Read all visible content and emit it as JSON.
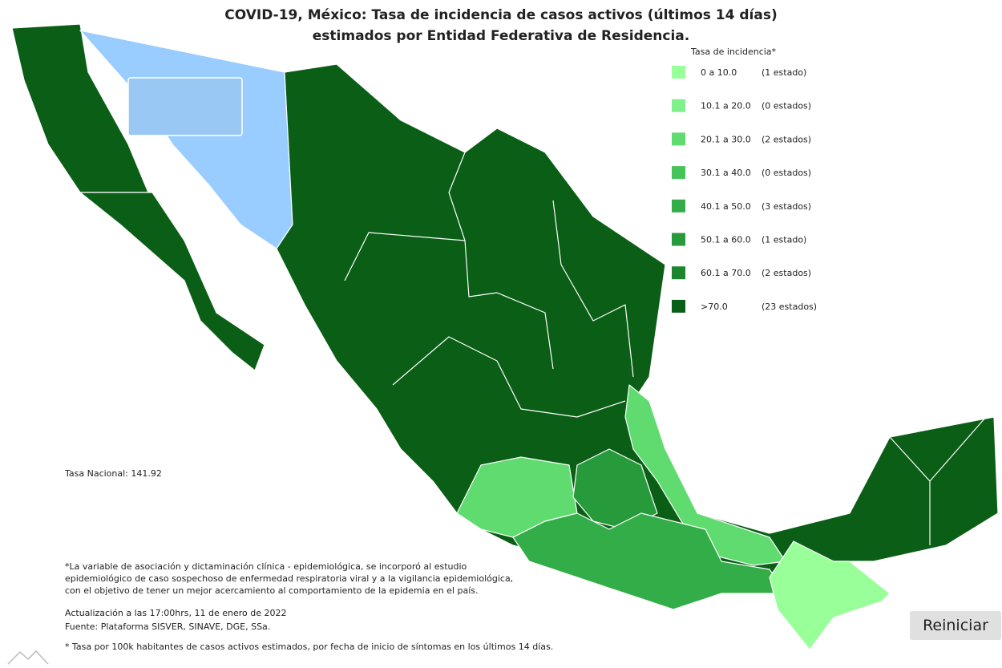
{
  "header": {
    "title_line1": "COVID-19, México: Tasa de incidencia de casos activos (últimos 14 días)",
    "title_line2": "estimados por Entidad Federativa de Residencia."
  },
  "legend": {
    "title": "Tasa de incidencia*",
    "items": [
      {
        "range": "0 a 10.0",
        "count": "(1 estado)",
        "color": "#99ff99"
      },
      {
        "range": "10.1 a  20.0",
        "count": "(0 estados)",
        "color": "#7ff08a"
      },
      {
        "range": "20.1 a 30.0",
        "count": "(2 estados)",
        "color": "#5fdb70"
      },
      {
        "range": "30.1 a 40.0",
        "count": "(0 estados)",
        "color": "#45c45a"
      },
      {
        "range": "40.1 a 50.0",
        "count": "(3 estados)",
        "color": "#33ad47"
      },
      {
        "range": "50.1 a 60.0",
        "count": "(1 estado)",
        "color": "#279a3b"
      },
      {
        "range": "60.1 a 70.0",
        "count": "(2 estados)",
        "color": "#1c852f"
      },
      {
        "range": ">70.0",
        "count": "(23 estados)",
        "color": "#0a5e16"
      }
    ]
  },
  "national_rate": "Tasa Nacional: 141.92",
  "notes": [
    "*La variable de asociación y dictaminación clínica - epidemiológica, se incorporó al estudio",
    "epidemiológico de caso sospechoso de enfermedad respiratoria viral y a la vigilancia epidemiológica,",
    "con el objetivo de tener un mejor acercamiento al comportamiento de la epidemia en el país."
  ],
  "update": "Actualización a las 17:00hrs, 11 de enero de 2022",
  "source": "Fuente: Plataforma SISVER, SINAVE, DGE, SSa.",
  "footnote": "* Tasa por 100k habitantes de casos activos estimados, por fecha de inicio de síntomas en los últimos 14 días.",
  "button": "Reiniciar"
}
